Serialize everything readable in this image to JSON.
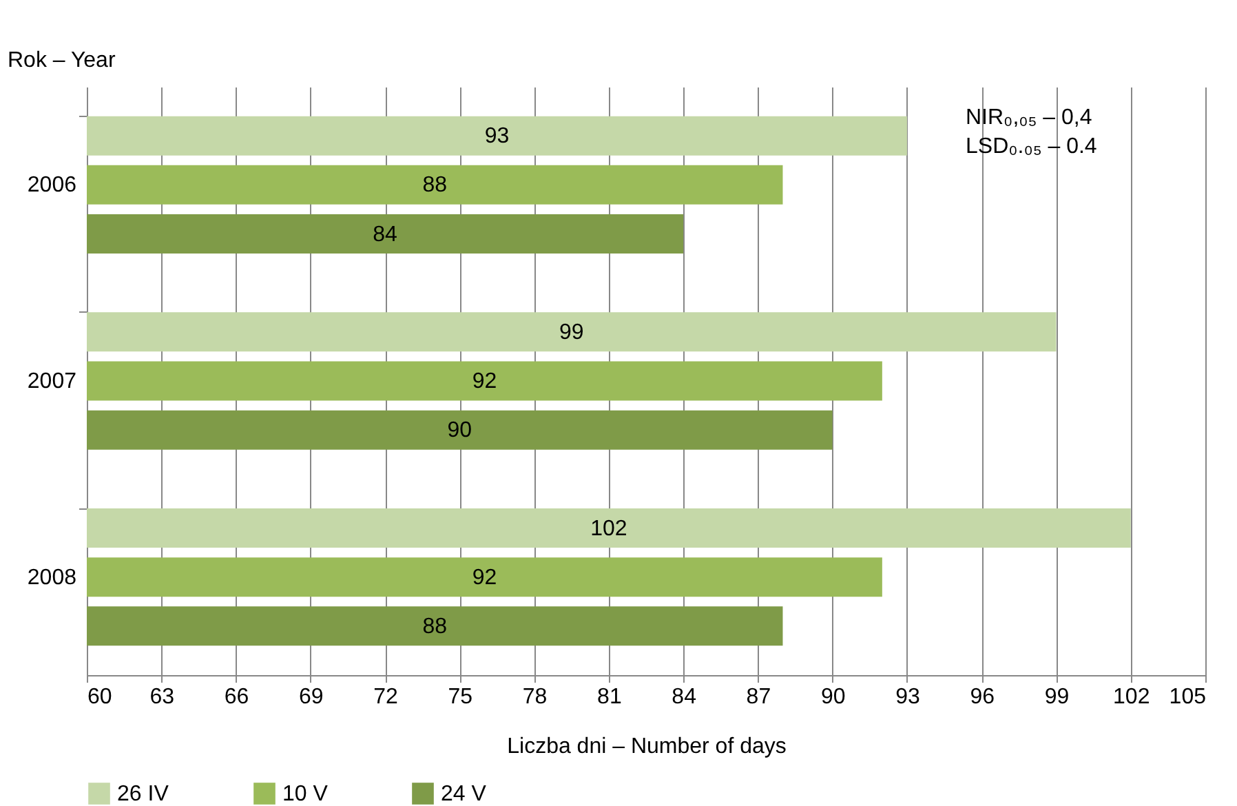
{
  "chart_data": {
    "type": "bar",
    "orientation": "horizontal",
    "ylabel": "Rok – Year",
    "xlabel": "Liczba dni – Number of days",
    "categories": [
      "2006",
      "2007",
      "2008"
    ],
    "series": [
      {
        "name": "26 IV",
        "color": "#c5d8a8",
        "values": [
          93,
          99,
          102
        ]
      },
      {
        "name": "10 V",
        "color": "#9bbb59",
        "values": [
          88,
          92,
          92
        ]
      },
      {
        "name": "24 V",
        "color": "#7f9b48",
        "values": [
          84,
          90,
          88
        ]
      }
    ],
    "xlim": [
      60,
      105
    ],
    "xticks": [
      60,
      63,
      66,
      69,
      72,
      75,
      78,
      81,
      84,
      87,
      90,
      93,
      96,
      99,
      102,
      105
    ],
    "grid": "x",
    "legend": "bottom",
    "data_labels": true,
    "annotations": [
      "NIR₀,₀₅ – 0,4",
      "LSD₀.₀₅ – 0.4"
    ]
  }
}
